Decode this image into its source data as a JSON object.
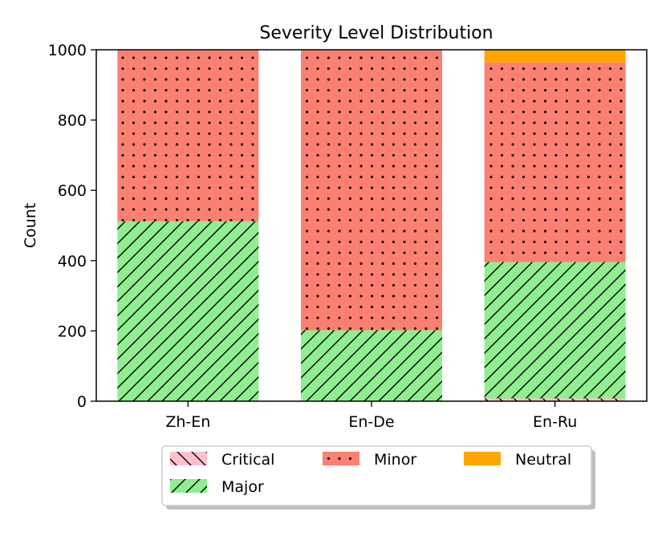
{
  "chart_data": {
    "type": "bar",
    "stacked": true,
    "title": "Severity Level Distribution",
    "xlabel": "",
    "ylabel": "Count",
    "ylim": [
      0,
      1000
    ],
    "yticks": [
      0,
      200,
      400,
      600,
      800,
      1000
    ],
    "categories": [
      "Zh-En",
      "En-De",
      "En-Ru"
    ],
    "series": [
      {
        "name": "Critical",
        "color": "#ffc0cb",
        "hatch": "backslash",
        "values": [
          0,
          0,
          8
        ]
      },
      {
        "name": "Major",
        "color": "#90ee90",
        "hatch": "slash",
        "values": [
          512,
          202,
          388
        ]
      },
      {
        "name": "Minor",
        "color": "#fa8072",
        "hatch": "dots",
        "values": [
          488,
          798,
          568
        ]
      },
      {
        "name": "Neutral",
        "color": "#ffa500",
        "hatch": "none",
        "values": [
          0,
          0,
          36
        ]
      }
    ],
    "legend": {
      "placement": "bottom-center",
      "columns": 3,
      "order": [
        "Critical",
        "Minor",
        "Neutral",
        "Major"
      ]
    },
    "grid": false
  }
}
